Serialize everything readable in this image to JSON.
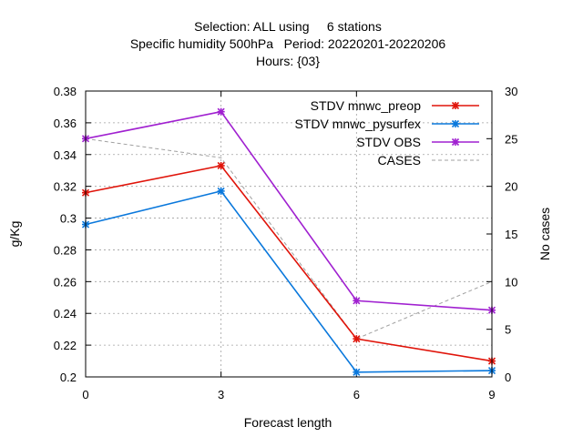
{
  "chart_data": {
    "type": "line",
    "title_lines": [
      "Selection: ALL using     6 stations",
      "Specific humidity 500hPa   Period: 20220201-20220206",
      "Hours: {03}"
    ],
    "xlabel": "Forecast length",
    "ylabel": "g/Kg",
    "y2label": "No cases",
    "x": [
      0,
      3,
      6,
      9
    ],
    "x_ticks": [
      0,
      3,
      6,
      9
    ],
    "xlim": [
      0,
      9
    ],
    "ylim": [
      0.2,
      0.38
    ],
    "y_ticks": [
      0.2,
      0.22,
      0.24,
      0.26,
      0.28,
      0.3,
      0.32,
      0.34,
      0.36,
      0.38
    ],
    "y2lim": [
      0,
      30
    ],
    "y2_ticks": [
      0,
      5,
      10,
      15,
      20,
      25,
      30
    ],
    "grid": true,
    "legend_position": "top-right",
    "series": [
      {
        "name": "STDV mnwc_preop",
        "axis": "y",
        "style": "solid",
        "marker": true,
        "color": "#e0140a",
        "values": [
          0.316,
          0.333,
          0.224,
          0.21
        ]
      },
      {
        "name": "STDV mnwc_pysurfex",
        "axis": "y",
        "style": "solid",
        "marker": true,
        "color": "#0a78dc",
        "values": [
          0.296,
          0.317,
          0.203,
          0.204
        ]
      },
      {
        "name": "STDV OBS",
        "axis": "y",
        "style": "solid",
        "marker": true,
        "color": "#a020d0",
        "values": [
          0.35,
          0.367,
          0.248,
          0.242
        ]
      },
      {
        "name": "CASES",
        "axis": "y2",
        "style": "dashed",
        "marker": false,
        "color": "#a0a0a0",
        "values": [
          25,
          23,
          4,
          10
        ]
      }
    ]
  }
}
